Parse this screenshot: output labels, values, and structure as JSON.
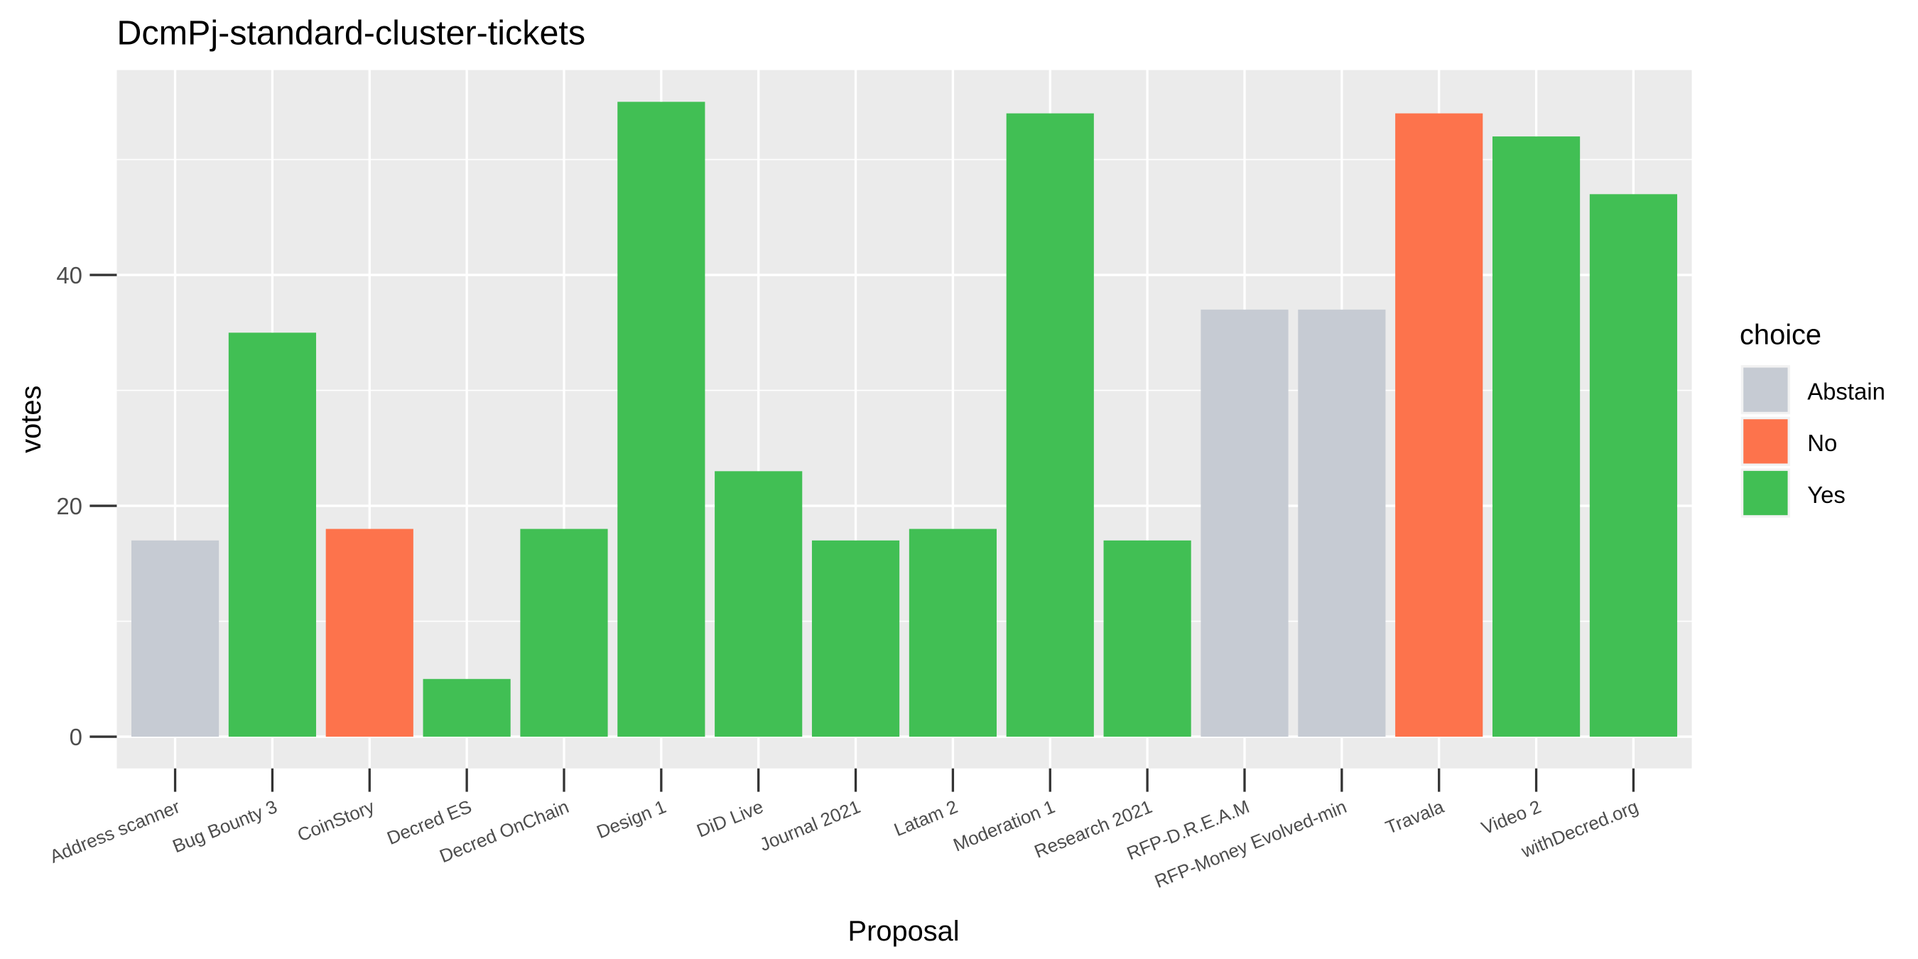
{
  "chart_data": {
    "type": "bar",
    "title": "DcmPj-standard-cluster-tickets",
    "xlabel": "Proposal",
    "ylabel": "votes",
    "ylim": [
      -2.75,
      57.75
    ],
    "yticks": [
      0,
      20,
      40
    ],
    "grid": true,
    "legend": {
      "title": "choice",
      "placement": "right",
      "entries": [
        {
          "label": "Abstain",
          "color": "#C6CBD3"
        },
        {
          "label": "No",
          "color": "#FD734C"
        },
        {
          "label": "Yes",
          "color": "#41BF54"
        }
      ]
    },
    "categories": [
      "Address scanner",
      "Bug Bounty 3",
      "CoinStory",
      "Decred ES",
      "Decred OnChain",
      "Design 1",
      "DiD Live",
      "Journal 2021",
      "Latam 2",
      "Moderation 1",
      "Research 2021",
      "RFP-D.R.E.A.M",
      "RFP-Money Evolved-min",
      "Travala",
      "Video 2",
      "withDecred.org"
    ],
    "values": [
      17,
      35,
      18,
      5,
      18,
      55,
      23,
      17,
      18,
      54,
      17,
      37,
      37,
      54,
      52,
      47
    ],
    "choices": [
      "Abstain",
      "Yes",
      "No",
      "Yes",
      "Yes",
      "Yes",
      "Yes",
      "Yes",
      "Yes",
      "Yes",
      "Yes",
      "Abstain",
      "Abstain",
      "No",
      "Yes",
      "Yes"
    ]
  }
}
